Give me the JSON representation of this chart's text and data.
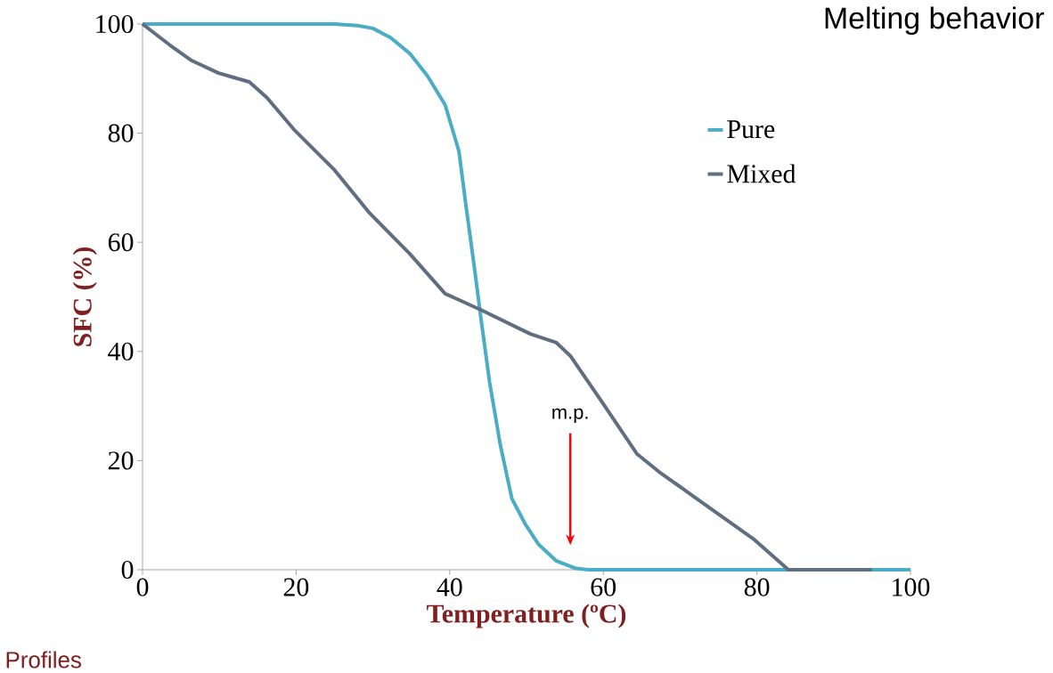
{
  "chart_data": {
    "type": "line",
    "title": "Melting behavior",
    "xlabel": "Temperature (ºC)",
    "ylabel": "SFC (%)",
    "xlim": [
      0,
      100
    ],
    "ylim": [
      0,
      100
    ],
    "xticks": [
      0,
      20,
      40,
      60,
      80,
      100
    ],
    "yticks": [
      0,
      20,
      40,
      60,
      80,
      100
    ],
    "grid": false,
    "legend": "top right",
    "marker": "none",
    "line_style": "solid",
    "series": [
      {
        "name": "Pure",
        "color": "#4bacc6",
        "x": [
          0,
          10,
          20,
          25,
          28,
          30,
          32.3,
          34.8,
          37.1,
          39.4,
          41.2,
          42.1,
          43.2,
          44.1,
          45.2,
          46.6,
          48.1,
          49.9,
          51.6,
          53.9,
          56.3,
          58,
          70,
          80,
          90,
          100
        ],
        "values": [
          100,
          100,
          100,
          100,
          99.7,
          99.2,
          97.5,
          94.6,
          90.5,
          85.2,
          76.7,
          66.9,
          55.5,
          45.7,
          34.3,
          22.8,
          13,
          8.2,
          4.6,
          1.6,
          0.3,
          0,
          0,
          0,
          0,
          0
        ]
      },
      {
        "name": "Mixed",
        "color": "#5f6e80",
        "x": [
          0,
          3.5,
          6.4,
          9.9,
          13.9,
          16.2,
          19.7,
          24.9,
          29.6,
          34.8,
          39.4,
          44.1,
          50.5,
          53.9,
          55.7,
          59.7,
          64.4,
          67.3,
          71.3,
          79.5,
          84.1,
          90,
          95
        ],
        "values": [
          100,
          96.2,
          93.3,
          91,
          89.4,
          86.5,
          80.7,
          73.4,
          65.3,
          57.9,
          50.6,
          47.6,
          43.2,
          41.6,
          39.2,
          31,
          21.2,
          17.9,
          13.9,
          5.7,
          0,
          0,
          0
        ]
      }
    ],
    "annotations": [
      "m.p.",
      "Profiles"
    ]
  }
}
